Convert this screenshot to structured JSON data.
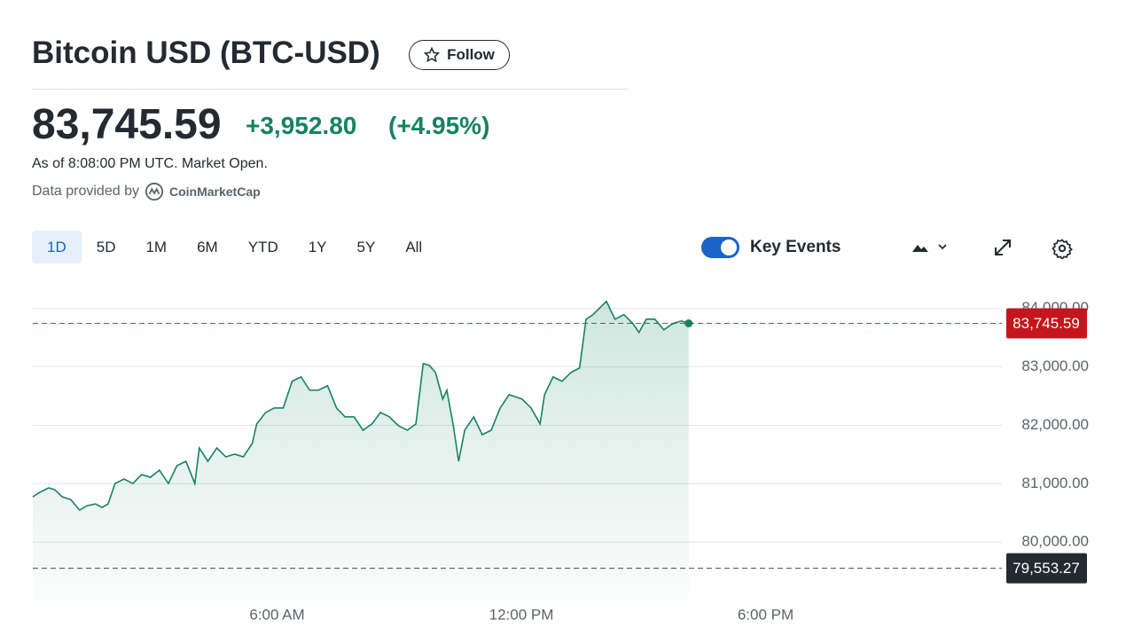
{
  "header": {
    "title": "Bitcoin USD (BTC-USD)",
    "follow": "Follow",
    "price": "83,745.59",
    "change": "+3,952.80",
    "change_pct": "(+4.95%)",
    "as_of": "As of 8:08:00 PM UTC. Market Open.",
    "provider": "Data provided by",
    "provider_name": "CoinMarketCap"
  },
  "toolbar": {
    "ranges": [
      "1D",
      "5D",
      "1M",
      "6M",
      "YTD",
      "1Y",
      "5Y",
      "All"
    ],
    "selected": "1D",
    "key_events": "Key Events"
  },
  "chart_data": {
    "type": "line",
    "color": "#16835f",
    "grid": true,
    "x": [
      0,
      0.17,
      0.39,
      0.54,
      0.72,
      0.93,
      1.15,
      1.33,
      1.54,
      1.7,
      1.85,
      2.02,
      2.24,
      2.46,
      2.67,
      2.89,
      3.11,
      3.33,
      3.54,
      3.76,
      3.98,
      4.09,
      4.3,
      4.52,
      4.74,
      4.96,
      5.17,
      5.39,
      5.5,
      5.72,
      5.93,
      6.15,
      6.37,
      6.59,
      6.8,
      7.02,
      7.24,
      7.46,
      7.67,
      7.89,
      8.11,
      8.33,
      8.54,
      8.76,
      8.98,
      9.2,
      9.41,
      9.59,
      9.74,
      9.89,
      10.07,
      10.17,
      10.33,
      10.46,
      10.61,
      10.83,
      11.04,
      11.26,
      11.48,
      11.7,
      12.02,
      12.24,
      12.46,
      12.57,
      12.78,
      13,
      13.22,
      13.43,
      13.59,
      13.76,
      13.98,
      14.09,
      14.3,
      14.52,
      14.74,
      14.89,
      15.07,
      15.28,
      15.5,
      15.72,
      15.93,
      16.11
    ],
    "values": [
      80776,
      80852,
      80928,
      80897,
      80776,
      80730,
      80547,
      80623,
      80654,
      80593,
      80654,
      81004,
      81080,
      81004,
      81156,
      81110,
      81232,
      81004,
      81308,
      81384,
      81004,
      81612,
      81384,
      81612,
      81460,
      81506,
      81460,
      81688,
      82023,
      82220,
      82296,
      82296,
      82753,
      82829,
      82601,
      82601,
      82677,
      82296,
      82144,
      82144,
      81916,
      82023,
      82220,
      82144,
      81992,
      81916,
      82023,
      83057,
      83027,
      82905,
      82449,
      82601,
      81992,
      81384,
      81916,
      82144,
      81840,
      81916,
      82296,
      82525,
      82449,
      82296,
      82023,
      82525,
      82829,
      82753,
      82905,
      82981,
      83817,
      83894,
      84046,
      84122,
      83817,
      83894,
      83741,
      83589,
      83817,
      83817,
      83635,
      83741,
      83787,
      83745.59
    ],
    "xlim": [
      0,
      24
    ],
    "xticks": [
      {
        "value": 6,
        "label": "6:00 AM"
      },
      {
        "value": 12,
        "label": "12:00 PM"
      },
      {
        "value": 18,
        "label": "6:00 PM"
      }
    ],
    "ylim": [
      79000,
      84300
    ],
    "yticks": [
      {
        "value": 80000,
        "label": "80,000.00"
      },
      {
        "value": 81000,
        "label": "81,000.00"
      },
      {
        "value": 82000,
        "label": "82,000.00"
      },
      {
        "value": 83000,
        "label": "83,000.00"
      },
      {
        "value": 84000,
        "label": "84,000.00"
      }
    ],
    "price_line": {
      "value": 83745.59,
      "label": "83,745.59",
      "color": "#c4161c"
    },
    "prev_close_line": {
      "value": 79553.27,
      "label": "79,553.27",
      "color": "#232a31"
    }
  }
}
